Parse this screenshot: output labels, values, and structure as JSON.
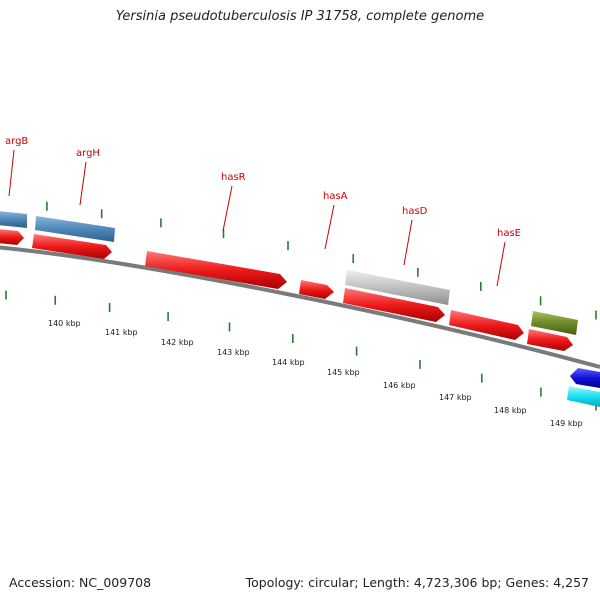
{
  "header": {
    "title": "Yersinia pseudotuberculosis IP 31758, complete genome"
  },
  "footer": {
    "accession": "Accession: NC_009708",
    "summary": "Topology: circular; Length: 4,723,306 bp; Genes: 4,257"
  },
  "colors": {
    "cds_red": "#e8141b",
    "blue_feature": "#4f87b8",
    "gray_feature": "#b8b8b8",
    "olive_feature": "#6f8a2a",
    "navy_feature": "#1010d8",
    "cyan_feature": "#16e0f0",
    "backbone": "#7a7a7a",
    "tick_green": "#2d7a2d",
    "label_red": "#cc0000"
  },
  "ruler": {
    "unit": "kbp",
    "labels": [
      "140 kbp",
      "141 kbp",
      "142 kbp",
      "143 kbp",
      "144 kbp",
      "145 kbp",
      "146 kbp",
      "147 kbp",
      "148 kbp",
      "149 kbp"
    ]
  },
  "gene_labels": [
    "argB",
    "argH",
    "hasR",
    "hasA",
    "hasD",
    "hasE"
  ]
}
